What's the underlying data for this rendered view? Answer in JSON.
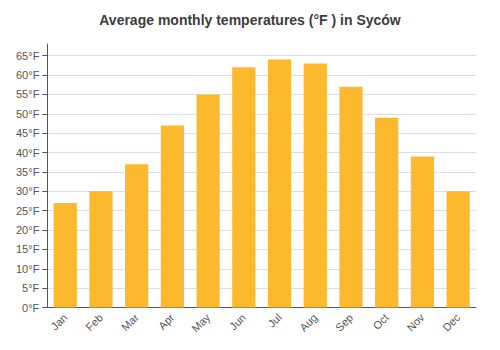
{
  "chart_data": {
    "type": "bar",
    "title": "Average monthly temperatures (°F ) in Syców",
    "categories": [
      "Jan",
      "Feb",
      "Mar",
      "Apr",
      "May",
      "Jun",
      "Jul",
      "Aug",
      "Sep",
      "Oct",
      "Nov",
      "Dec"
    ],
    "values": [
      27,
      30,
      37,
      47,
      55,
      62,
      64,
      63,
      57,
      49,
      39,
      30
    ],
    "color": "#FDB92E",
    "ylim": [
      0,
      68
    ],
    "yticks": [
      {
        "value": 0,
        "label": "0°F"
      },
      {
        "value": 5,
        "label": "5°F"
      },
      {
        "value": 10,
        "label": "10°F"
      },
      {
        "value": 15,
        "label": "15°F"
      },
      {
        "value": 20,
        "label": "20°F"
      },
      {
        "value": 25,
        "label": "25°F"
      },
      {
        "value": 30,
        "label": "30°F"
      },
      {
        "value": 35,
        "label": "35°F"
      },
      {
        "value": 40,
        "label": "40°F"
      },
      {
        "value": 45,
        "label": "45°F"
      },
      {
        "value": 50,
        "label": "50°F"
      },
      {
        "value": 55,
        "label": "55°F"
      },
      {
        "value": 60,
        "label": "60°F"
      },
      {
        "value": 65,
        "label": "65°F"
      }
    ],
    "grid": true
  }
}
